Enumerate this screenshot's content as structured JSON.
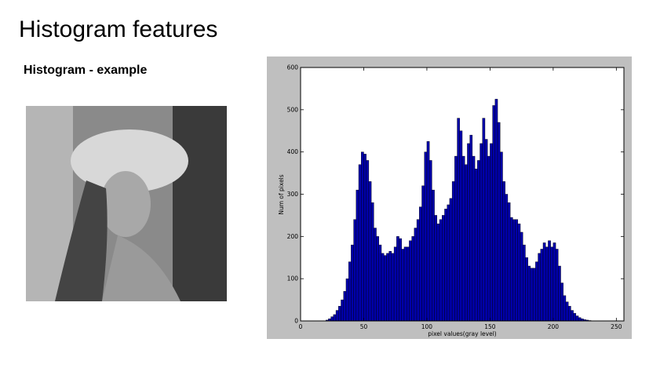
{
  "title": "Histogram features",
  "subtitle": "Histogram - example",
  "chart_data": {
    "type": "histogram",
    "xlabel": "pixel values(gray level)",
    "ylabel": "Num of pixels",
    "bins": [
      0,
      2,
      4,
      6,
      8,
      10,
      12,
      14,
      16,
      18,
      20,
      22,
      24,
      26,
      28,
      30,
      32,
      34,
      36,
      38,
      40,
      42,
      44,
      46,
      48,
      50,
      52,
      54,
      56,
      58,
      60,
      62,
      64,
      66,
      68,
      70,
      72,
      74,
      76,
      78,
      80,
      82,
      84,
      86,
      88,
      90,
      92,
      94,
      96,
      98,
      100,
      102,
      104,
      106,
      108,
      110,
      112,
      114,
      116,
      118,
      120,
      122,
      124,
      126,
      128,
      130,
      132,
      134,
      136,
      138,
      140,
      142,
      144,
      146,
      148,
      150,
      152,
      154,
      156,
      158,
      160,
      162,
      164,
      166,
      168,
      170,
      172,
      174,
      176,
      178,
      180,
      182,
      184,
      186,
      188,
      190,
      192,
      194,
      196,
      198,
      200,
      202,
      204,
      206,
      208,
      210,
      212,
      214,
      216,
      218,
      220,
      222,
      224,
      226,
      228,
      230,
      232,
      234,
      236,
      238,
      240,
      242,
      244,
      246,
      248,
      250,
      252,
      254,
      256
    ],
    "counts": [
      0,
      0,
      0,
      0,
      0,
      0,
      0,
      0,
      0,
      0,
      2,
      5,
      10,
      15,
      25,
      35,
      50,
      70,
      100,
      140,
      180,
      240,
      310,
      370,
      400,
      395,
      380,
      330,
      280,
      220,
      200,
      180,
      160,
      155,
      160,
      165,
      160,
      175,
      200,
      195,
      170,
      175,
      175,
      190,
      200,
      220,
      240,
      270,
      320,
      400,
      425,
      380,
      310,
      250,
      230,
      240,
      250,
      265,
      275,
      290,
      330,
      390,
      480,
      450,
      390,
      370,
      420,
      440,
      390,
      360,
      380,
      420,
      480,
      430,
      390,
      420,
      510,
      525,
      470,
      400,
      330,
      300,
      280,
      245,
      240,
      240,
      230,
      210,
      180,
      150,
      130,
      125,
      125,
      140,
      160,
      170,
      185,
      175,
      190,
      175,
      185,
      170,
      130,
      90,
      60,
      45,
      35,
      25,
      18,
      12,
      8,
      5,
      3,
      2,
      1,
      0,
      0,
      0,
      0,
      0,
      0,
      0,
      0,
      0,
      0,
      0,
      0,
      0
    ],
    "color": "#0000aa",
    "xlim": [
      0,
      256
    ],
    "ylim": [
      0,
      600
    ],
    "xticks": [
      0,
      50,
      100,
      150,
      200,
      250
    ],
    "yticks": [
      0,
      100,
      200,
      300,
      400,
      500,
      600
    ]
  }
}
